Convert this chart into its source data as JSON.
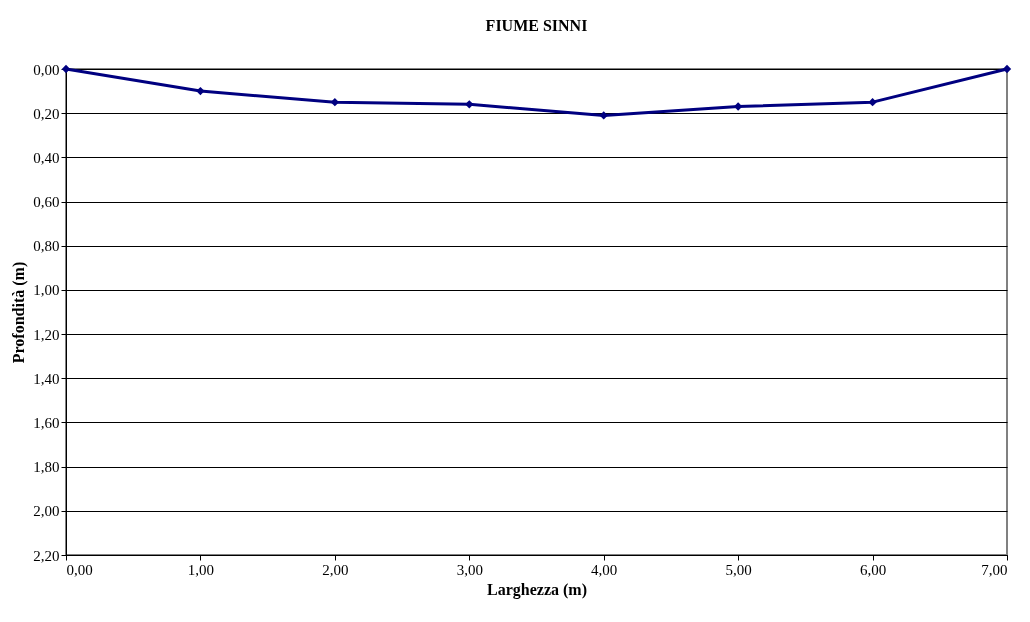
{
  "chart_data": {
    "type": "line",
    "title": "FIUME SINNI",
    "xlabel": "Larghezza (m)",
    "ylabel": "Profondità (m)",
    "x": [
      0,
      1,
      2,
      3,
      4,
      5,
      6,
      7
    ],
    "series": [
      {
        "color": "#000080",
        "values": [
          0,
          0.1,
          0.15,
          0.16,
          0.21,
          0.17,
          0.15,
          0
        ]
      }
    ],
    "xlim": [
      0,
      7
    ],
    "xticks": [
      {
        "value": 0,
        "label": "0,00"
      },
      {
        "value": 1,
        "label": "1,00"
      },
      {
        "value": 2,
        "label": "2,00"
      },
      {
        "value": 3,
        "label": "3,00"
      },
      {
        "value": 4,
        "label": "4,00"
      },
      {
        "value": 5,
        "label": "5,00"
      },
      {
        "value": 6,
        "label": "6,00"
      },
      {
        "value": 7,
        "label": "7,00"
      }
    ],
    "ylim": [
      2.2,
      0
    ],
    "yticks": [
      {
        "value": 0,
        "label": "0,00"
      },
      {
        "value": 0.2,
        "label": "0,20"
      },
      {
        "value": 0.4,
        "label": "0,40"
      },
      {
        "value": 0.6,
        "label": "0,60"
      },
      {
        "value": 0.8,
        "label": "0,80"
      },
      {
        "value": 1,
        "label": "1,00"
      },
      {
        "value": 1.2,
        "label": "1,20"
      },
      {
        "value": 1.4,
        "label": "1,40"
      },
      {
        "value": 1.6,
        "label": "1,60"
      },
      {
        "value": 1.8,
        "label": "1,80"
      },
      {
        "value": 2,
        "label": "2,00"
      },
      {
        "value": 2.2,
        "label": "2,20"
      }
    ],
    "grid": "y",
    "marker": "diamond",
    "line_style": "solid",
    "legend": false
  }
}
